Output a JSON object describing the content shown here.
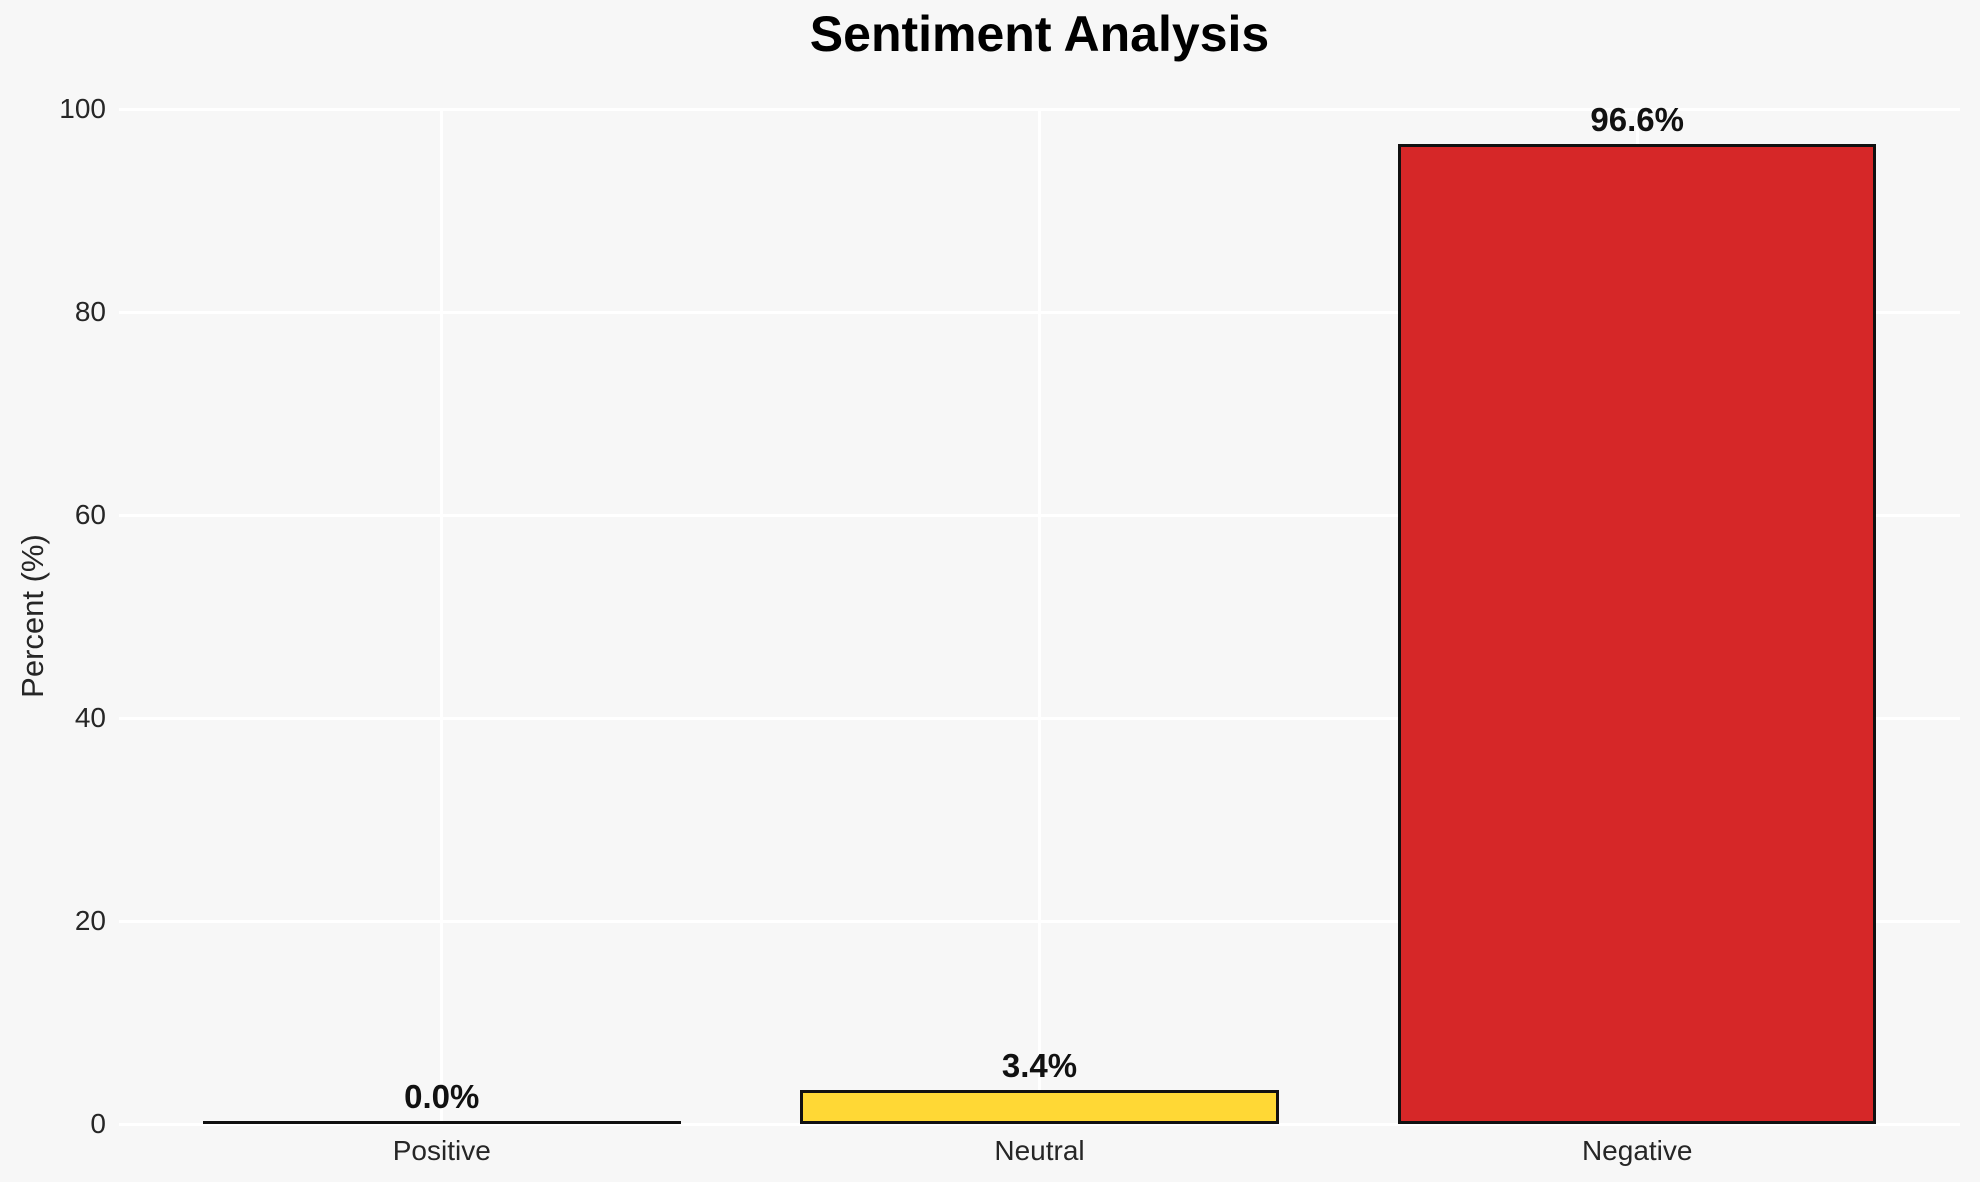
{
  "chart_data": {
    "type": "bar",
    "title": "Sentiment Analysis",
    "xlabel": "",
    "ylabel": "Percent (%)",
    "categories": [
      "Positive",
      "Neutral",
      "Negative"
    ],
    "values": [
      0.0,
      3.4,
      96.6
    ],
    "value_labels": [
      "0.0%",
      "3.4%",
      "96.6%"
    ],
    "bar_colors": [
      null,
      "#ffd835",
      "#d62728"
    ],
    "edge_color": "#111111",
    "ylim": [
      0,
      100
    ],
    "yticks": [
      0,
      20,
      40,
      60,
      80,
      100
    ],
    "grid": "both",
    "grid_color": "#ffffff",
    "background_color": "#f7f7f7",
    "legend": "none",
    "bar_width_fraction": 0.8
  }
}
